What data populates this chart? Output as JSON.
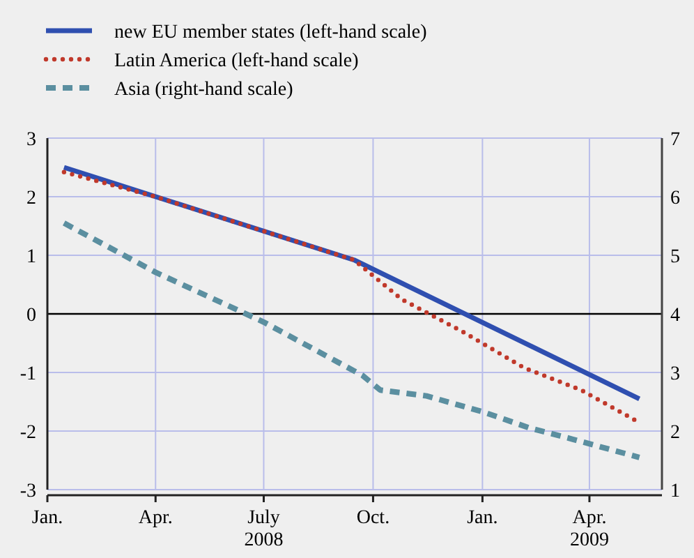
{
  "chart_data": {
    "type": "line",
    "xlim": [
      "2008-01-01",
      "2009-06-01"
    ],
    "xticks": [
      {
        "value": "2008-01-01",
        "label": "Jan."
      },
      {
        "value": "2008-04-01",
        "label": "Apr."
      },
      {
        "value": "2008-07-01",
        "label": "July\n2008"
      },
      {
        "value": "2008-10-01",
        "label": "Oct."
      },
      {
        "value": "2009-01-01",
        "label": "Jan."
      },
      {
        "value": "2009-04-01",
        "label": "Apr.\n2009"
      }
    ],
    "ylim": [
      -3,
      3
    ],
    "yticks": [
      -3,
      -2,
      -1,
      0,
      1,
      2,
      3
    ],
    "y2lim": [
      1,
      7
    ],
    "y2ticks": [
      1,
      2,
      3,
      4,
      5,
      6,
      7
    ],
    "grid": true,
    "legend": "top left",
    "ref_lines": [
      {
        "axis": "y",
        "value": 0,
        "color": "#000000"
      }
    ],
    "series": [
      {
        "name": "new EU member states (left-hand scale)",
        "color": "#2f4fb0",
        "line_style": "solid",
        "x": [
          "2008-01-15",
          "2008-09-15",
          "2009-05-13"
        ],
        "values": [
          2.5,
          0.92,
          -1.45
        ]
      },
      {
        "name": "Latin America (left-hand scale)",
        "color": "#c0392b",
        "line_style": "dotted",
        "x": [
          "2008-01-15",
          "2008-04-01",
          "2008-09-15",
          "2008-10-25",
          "2008-12-15",
          "2009-02-05",
          "2009-03-25",
          "2009-05-10"
        ],
        "values": [
          2.42,
          2.0,
          0.92,
          0.25,
          -0.3,
          -0.92,
          -1.3,
          -1.82
        ]
      },
      {
        "name": "Asia (right-hand scale)",
        "color": "#5b8fa0",
        "line_style": "dashed",
        "axis": "y2",
        "x": [
          "2008-01-15",
          "2008-04-01",
          "2008-07-01",
          "2008-09-22",
          "2008-10-07",
          "2008-11-15",
          "2009-01-01",
          "2009-02-10",
          "2009-03-18",
          "2009-05-13"
        ],
        "values": [
          5.55,
          4.71,
          3.86,
          2.95,
          2.7,
          2.6,
          2.33,
          2.05,
          1.86,
          1.55
        ]
      }
    ]
  }
}
